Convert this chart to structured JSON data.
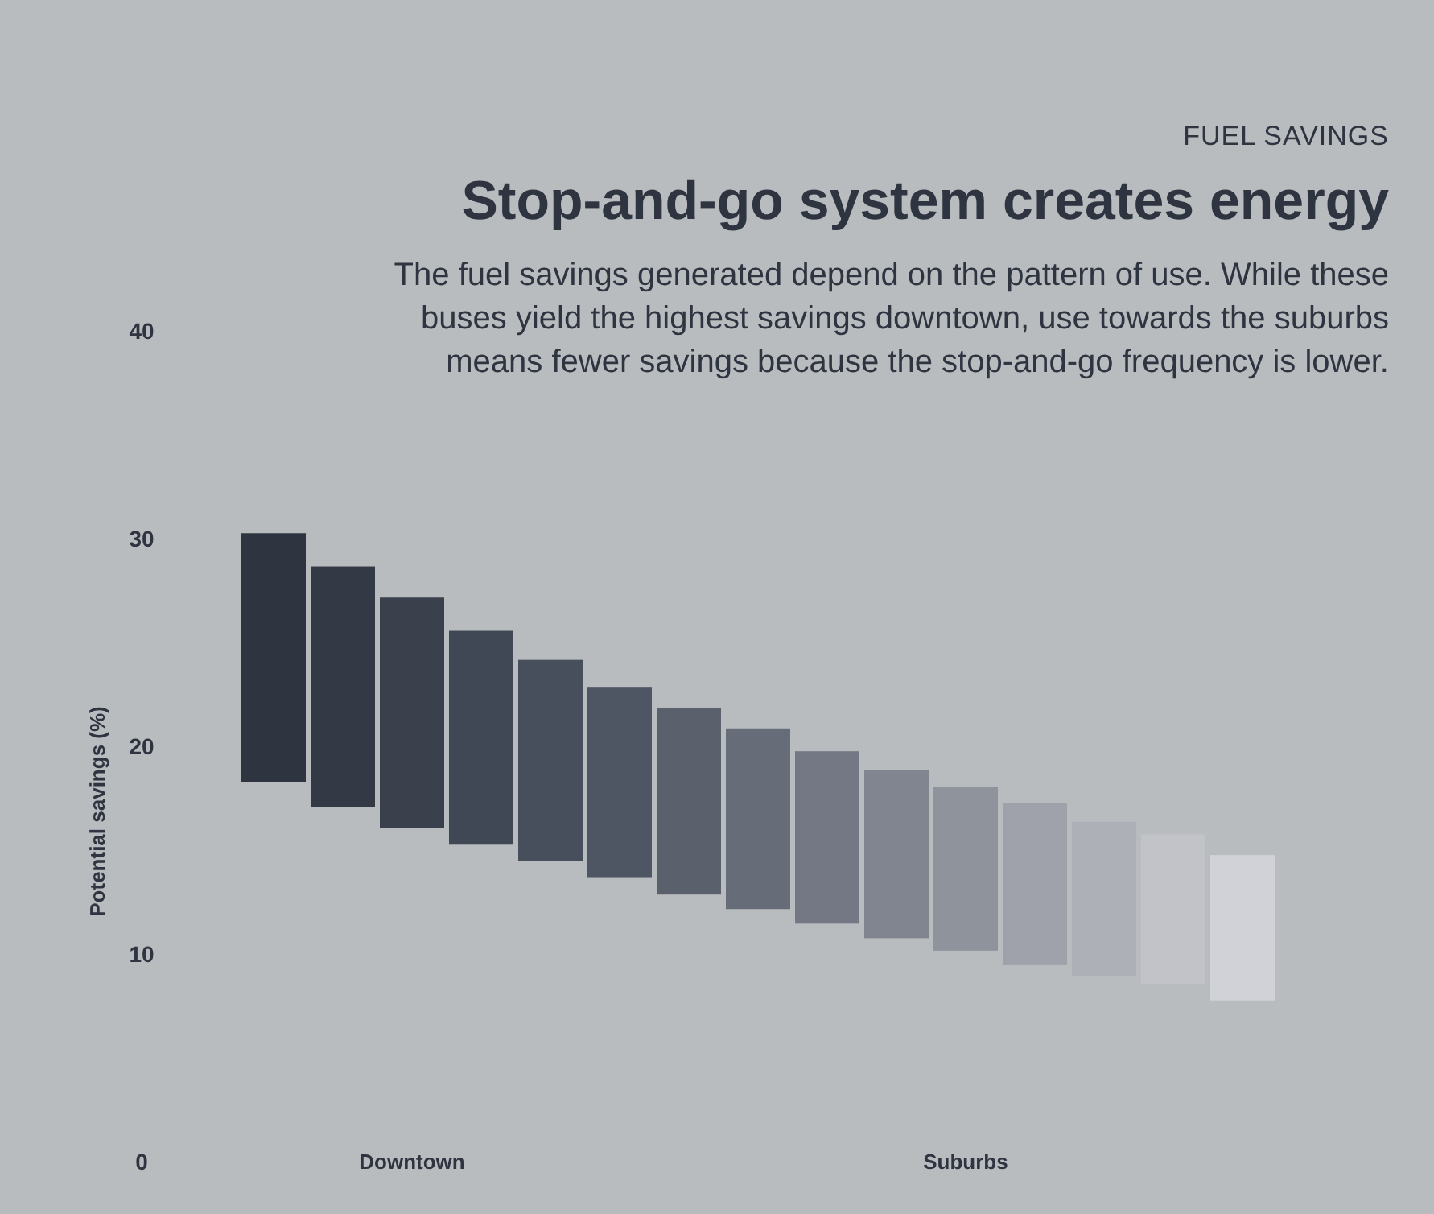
{
  "chart_data": {
    "type": "bar",
    "title": "Stop-and-go system creates energy",
    "subtitle": "The fuel savings generated depend on the pattern of use. While these buses yield the highest savings downtown, use towards the suburbs means fewer savings because the stop-and-go frequency is lower.",
    "annotations": [
      "FUEL SAVINGS"
    ],
    "ylabel": "Potential savings (%)",
    "categories": [
      null,
      null,
      "Downtown",
      null,
      null,
      null,
      null,
      null,
      null,
      null,
      "Suburbs",
      null,
      null,
      null,
      null
    ],
    "base": [
      18.3,
      17.1,
      16.1,
      15.3,
      14.5,
      13.7,
      12.9,
      12.2,
      11.5,
      10.8,
      10.2,
      9.5,
      9.0,
      8.6,
      7.8
    ],
    "values": [
      12.0,
      11.6,
      11.1,
      10.3,
      9.7,
      9.2,
      9.0,
      8.7,
      8.3,
      8.1,
      7.9,
      7.8,
      7.4,
      7.2,
      7.0
    ],
    "colors": [
      "#2e3540",
      "#333a46",
      "#3a414d",
      "#414855",
      "#484f5c",
      "#4f5663",
      "#5a606c",
      "#666c78",
      "#737884",
      "#80858f",
      "#8f939c",
      "#9fa2aa",
      "#aeb0b7",
      "#c1c3c8",
      "#d0d2d7"
    ],
    "ylim": [
      0,
      40
    ],
    "yticks": [
      0,
      10,
      20,
      30,
      40
    ],
    "grid": false
  }
}
